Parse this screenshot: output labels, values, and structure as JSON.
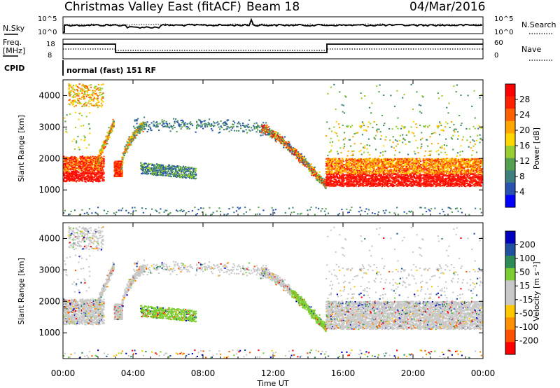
{
  "header": {
    "title": "Christmas Valley East (fitACF)",
    "beam": "Beam 18",
    "date": "04/Mar/2016"
  },
  "status_panels": {
    "nsky_label": "N.Sky",
    "nsky_ticks": [
      "10^5",
      "10^0"
    ],
    "nsearch_label": "N.Search",
    "nsearch_ticks": [
      "10^5",
      "10^0"
    ],
    "freq_label_1": "Freq.",
    "freq_label_2": "[MHz]",
    "freq_ticks": [
      "18",
      "8"
    ],
    "nave_label": "Nave",
    "nave_ticks": [
      "60",
      "0"
    ],
    "cpid_label": "CPID",
    "cpid_text": "normal (fast) 151 RF"
  },
  "colors": {
    "power": [
      "#0000ff",
      "#2a52b0",
      "#3f7f7f",
      "#55a050",
      "#9acd32",
      "#ffd700",
      "#ffa500",
      "#ff6000",
      "#ff2000",
      "#ff0000"
    ],
    "velocity": [
      "#0000c0",
      "#2050a0",
      "#2e8b57",
      "#7ccd32",
      "#c8c8c8",
      "#c8c8c8",
      "#ffc800",
      "#ff9000",
      "#ff5000",
      "#ff0000"
    ],
    "gray": "#c8c8c8"
  },
  "chart_data": [
    {
      "type": "heatmap",
      "panel": "power",
      "ylabel": "Slant Range [km]",
      "xlabel": "Time UT",
      "x_ticks": [
        "00:00",
        "04:00",
        "08:00",
        "12:00",
        "16:00",
        "20:00",
        "00:00"
      ],
      "y_ticks": [
        "1000",
        "2000",
        "3000",
        "4000"
      ],
      "ylim": [
        180,
        4500
      ],
      "xlim_hours": [
        0,
        24
      ],
      "colorbar_label": "Power [dB]",
      "colorbar_ticks": [
        "4",
        "8",
        "12",
        "16",
        "20",
        "24",
        "28"
      ],
      "colorbar_range": [
        0,
        30
      ]
    },
    {
      "type": "heatmap",
      "panel": "velocity",
      "ylabel": "Slant Range [km]",
      "xlabel": "Time UT",
      "x_ticks": [
        "00:00",
        "04:00",
        "08:00",
        "12:00",
        "16:00",
        "20:00",
        "00:00"
      ],
      "y_ticks": [
        "1000",
        "2000",
        "3000",
        "4000"
      ],
      "ylim": [
        180,
        4500
      ],
      "xlim_hours": [
        0,
        24
      ],
      "colorbar_label": "Velocity [m s⁻¹]",
      "colorbar_ticks": [
        "200",
        "100",
        "50",
        "15",
        "-15",
        "-50",
        "-100",
        "-200"
      ],
      "colorbar_range": [
        -250,
        250
      ]
    }
  ],
  "xaxis_label": "Time UT"
}
